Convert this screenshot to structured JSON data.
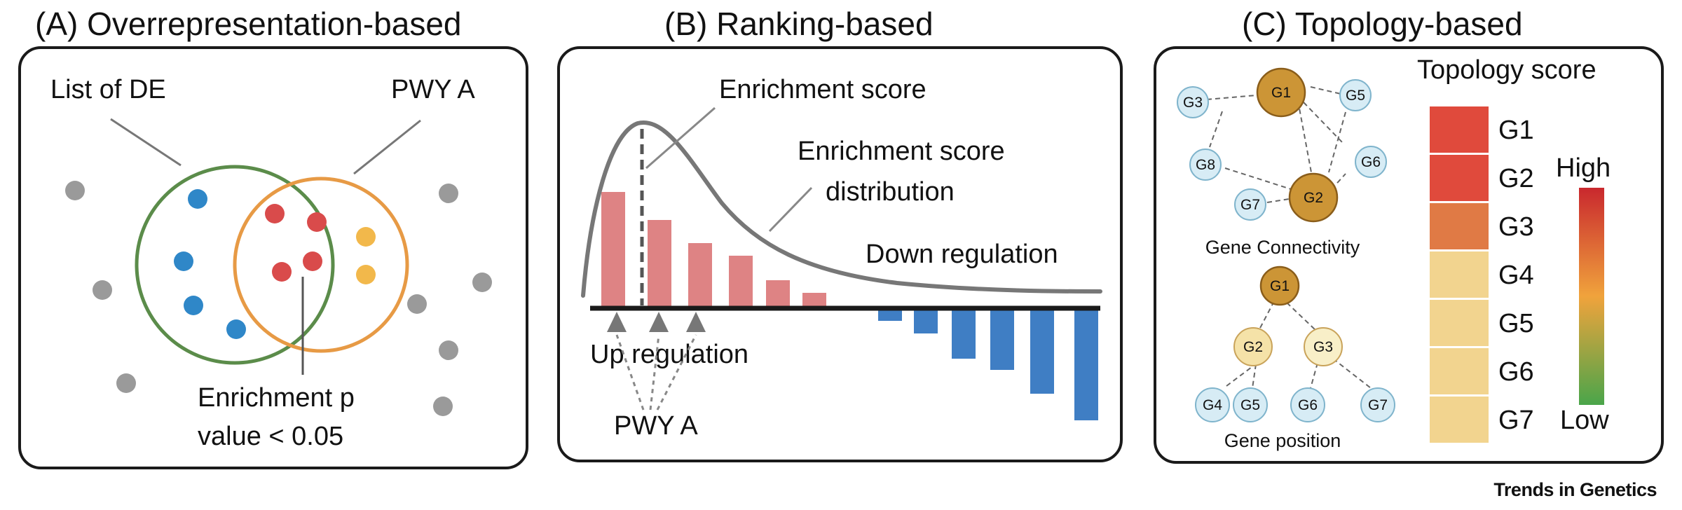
{
  "panel_a": {
    "title": "(A) Overrepresentation-based",
    "list_label": "List of DE",
    "pathway_label": "PWY A",
    "enrichment_line1": "Enrichment p",
    "enrichment_line2": "value < 0.05",
    "colors": {
      "list_circle": "#5b8c4a",
      "pathway_circle": "#e79a45",
      "de_gene": "#2f87c8",
      "overlap_gene": "#d94b4b",
      "pathway_gene": "#f2b84b",
      "other_gene": "#9a9a9a"
    }
  },
  "panel_b": {
    "title": "(B) Ranking-based",
    "enrichment_score": "Enrichment score",
    "distribution_line1": "Enrichment score",
    "distribution_line2": "distribution",
    "down_regulation": "Down regulation",
    "up_regulation": "Up regulation",
    "pathway_label": "PWY A",
    "colors": {
      "up_bar": "#de8384",
      "down_bar": "#3f7ec4",
      "curve": "#777777"
    }
  },
  "panel_c": {
    "title": "(C) Topology-based",
    "score_title": "Topology score",
    "connectivity_caption": "Gene Connectivity",
    "position_caption": "Gene position",
    "scale_high": "High",
    "scale_low": "Low",
    "network_genes": [
      "G1",
      "G2",
      "G3",
      "G5",
      "G6",
      "G7",
      "G8"
    ],
    "tree_genes": [
      "G1",
      "G2",
      "G3",
      "G4",
      "G5",
      "G6",
      "G7"
    ],
    "score_rows": [
      {
        "gene": "G1",
        "color": "#e04a3c"
      },
      {
        "gene": "G2",
        "color": "#e04a3c"
      },
      {
        "gene": "G3",
        "color": "#e07a45"
      },
      {
        "gene": "G4",
        "color": "#f2d48f"
      },
      {
        "gene": "G5",
        "color": "#f2d48f"
      },
      {
        "gene": "G6",
        "color": "#f2d48f"
      },
      {
        "gene": "G7",
        "color": "#f2d48f"
      }
    ],
    "colors": {
      "hub_gene": "#cc9536",
      "light_gene": "#d7ecf5",
      "mid_gene": "#f5e2a8"
    }
  },
  "credit": "Trends in Genetics"
}
